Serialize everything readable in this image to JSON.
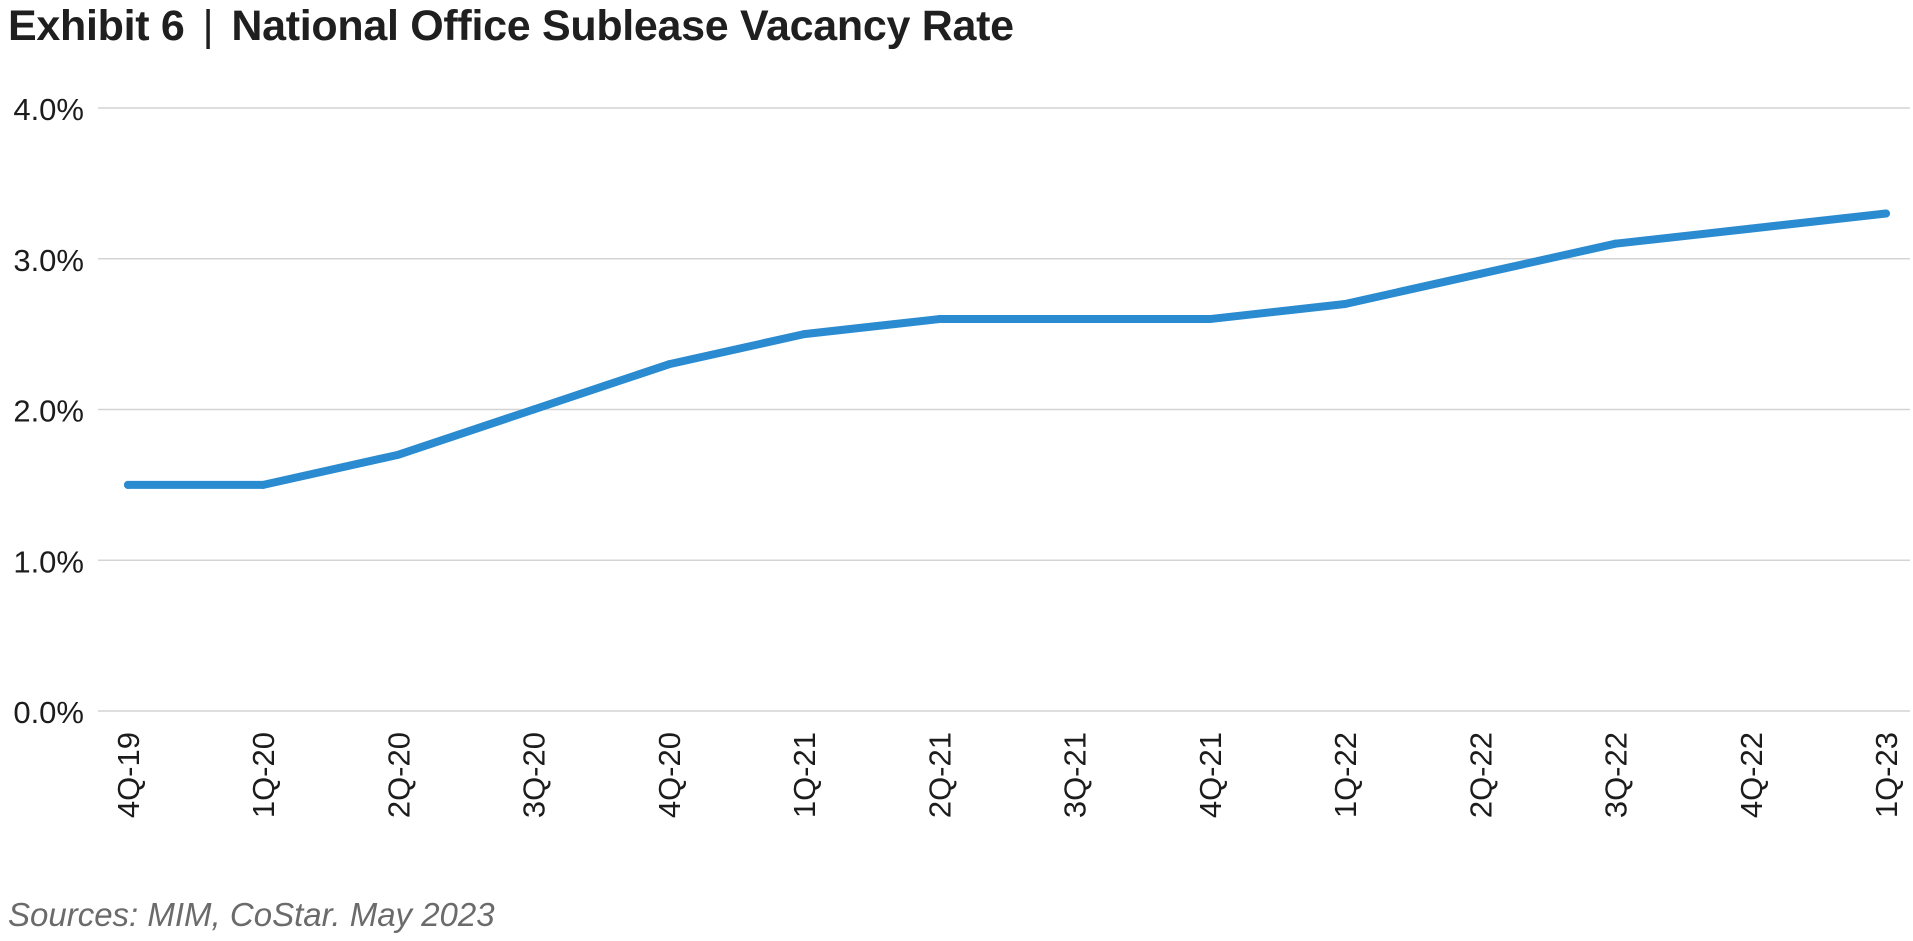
{
  "header": {
    "exhibit": "Exhibit 6",
    "separator": "|",
    "title": "National Office Sublease Vacancy Rate"
  },
  "footer": {
    "source": "Sources: MIM, CoStar. May 2023"
  },
  "colors": {
    "line": "#2a8bd0",
    "grid": "#d4d4d4",
    "text": "#1c1c1c"
  },
  "chart_data": {
    "type": "line",
    "title": "National Office Sublease Vacancy Rate",
    "xlabel": "",
    "ylabel": "",
    "categories": [
      "4Q-19",
      "1Q-20",
      "2Q-20",
      "3Q-20",
      "4Q-20",
      "1Q-21",
      "2Q-21",
      "3Q-21",
      "4Q-21",
      "1Q-22",
      "2Q-22",
      "3Q-22",
      "4Q-22",
      "1Q-23"
    ],
    "series": [
      {
        "name": "National Office Sublease Vacancy Rate",
        "values": [
          1.5,
          1.5,
          1.7,
          2.0,
          2.3,
          2.5,
          2.6,
          2.6,
          2.6,
          2.7,
          2.9,
          3.1,
          3.2,
          3.3
        ]
      }
    ],
    "ylim": [
      0,
      4
    ],
    "yticks": [
      0,
      1,
      2,
      3,
      4
    ],
    "ytick_labels": [
      "0.0%",
      "1.0%",
      "2.0%",
      "3.0%",
      "4.0%"
    ],
    "grid": true,
    "legend": "none"
  }
}
